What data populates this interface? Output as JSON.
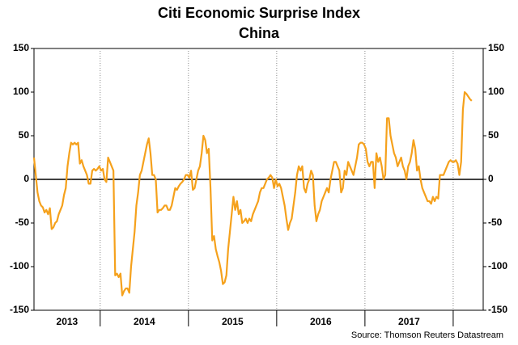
{
  "chart_data": {
    "type": "line",
    "title": "Citi Economic Surprise Index",
    "subtitle": "China",
    "source": "Source: Thomson Reuters Datastream",
    "xlim": [
      2013.25,
      2018.34
    ],
    "xticks": [
      2014,
      2015,
      2016,
      2017,
      2018
    ],
    "year_labels": [
      {
        "value": 2013.625,
        "label": "2013"
      },
      {
        "value": 2014.5,
        "label": "2014"
      },
      {
        "value": 2015.5,
        "label": "2015"
      },
      {
        "value": 2016.5,
        "label": "2016"
      },
      {
        "value": 2017.5,
        "label": "2017"
      }
    ],
    "ylim": [
      -150,
      150
    ],
    "yticks": [
      150,
      100,
      50,
      0,
      -50,
      -100,
      -150
    ],
    "y2lim": [
      -150,
      150
    ],
    "y2ticks": [
      150,
      100,
      50,
      0,
      -50,
      -100,
      -150
    ],
    "zero_line": 0,
    "grid": true,
    "series": [
      {
        "name": "China",
        "color": "#f5a11c",
        "x": [
          2013.25,
          2013.27,
          2013.29,
          2013.31,
          2013.33,
          2013.35,
          2013.37,
          2013.39,
          2013.41,
          2013.43,
          2013.45,
          2013.47,
          2013.49,
          2013.51,
          2013.53,
          2013.55,
          2013.57,
          2013.59,
          2013.61,
          2013.63,
          2013.65,
          2013.67,
          2013.69,
          2013.71,
          2013.73,
          2013.75,
          2013.77,
          2013.79,
          2013.81,
          2013.83,
          2013.85,
          2013.87,
          2013.89,
          2013.91,
          2013.93,
          2013.95,
          2013.97,
          2013.99,
          2014.01,
          2014.03,
          2014.05,
          2014.07,
          2014.09,
          2014.11,
          2014.13,
          2014.15,
          2014.17,
          2014.19,
          2014.21,
          2014.23,
          2014.25,
          2014.27,
          2014.29,
          2014.31,
          2014.33,
          2014.35,
          2014.37,
          2014.39,
          2014.41,
          2014.43,
          2014.45,
          2014.47,
          2014.49,
          2014.51,
          2014.53,
          2014.55,
          2014.57,
          2014.59,
          2014.61,
          2014.63,
          2014.65,
          2014.67,
          2014.69,
          2014.71,
          2014.73,
          2014.75,
          2014.77,
          2014.79,
          2014.81,
          2014.83,
          2014.85,
          2014.87,
          2014.89,
          2014.91,
          2014.93,
          2014.95,
          2014.97,
          2014.99,
          2015.01,
          2015.03,
          2015.05,
          2015.07,
          2015.09,
          2015.11,
          2015.13,
          2015.15,
          2015.17,
          2015.19,
          2015.21,
          2015.23,
          2015.25,
          2015.27,
          2015.29,
          2015.31,
          2015.33,
          2015.35,
          2015.37,
          2015.39,
          2015.41,
          2015.43,
          2015.45,
          2015.47,
          2015.49,
          2015.51,
          2015.53,
          2015.55,
          2015.57,
          2015.59,
          2015.61,
          2015.63,
          2015.65,
          2015.67,
          2015.69,
          2015.71,
          2015.73,
          2015.75,
          2015.77,
          2015.79,
          2015.81,
          2015.83,
          2015.85,
          2015.87,
          2015.89,
          2015.91,
          2015.93,
          2015.95,
          2015.97,
          2015.99,
          2016.01,
          2016.03,
          2016.05,
          2016.07,
          2016.09,
          2016.11,
          2016.13,
          2016.15,
          2016.17,
          2016.19,
          2016.21,
          2016.23,
          2016.25,
          2016.27,
          2016.29,
          2016.31,
          2016.33,
          2016.35,
          2016.37,
          2016.39,
          2016.41,
          2016.43,
          2016.45,
          2016.47,
          2016.49,
          2016.51,
          2016.53,
          2016.55,
          2016.57,
          2016.59,
          2016.61,
          2016.63,
          2016.65,
          2016.67,
          2016.69,
          2016.71,
          2016.73,
          2016.75,
          2016.77,
          2016.79,
          2016.81,
          2016.83,
          2016.85,
          2016.87,
          2016.89,
          2016.91,
          2016.93,
          2016.95,
          2016.97,
          2016.99,
          2017.01,
          2017.03,
          2017.05,
          2017.07,
          2017.09,
          2017.11,
          2017.13,
          2017.15,
          2017.17,
          2017.19,
          2017.21,
          2017.23,
          2017.25,
          2017.27,
          2017.29,
          2017.31,
          2017.33,
          2017.35,
          2017.37,
          2017.39,
          2017.41,
          2017.43,
          2017.45,
          2017.47,
          2017.49,
          2017.51,
          2017.53,
          2017.55,
          2017.57,
          2017.59,
          2017.61,
          2017.63,
          2017.65,
          2017.67,
          2017.69,
          2017.71,
          2017.73,
          2017.75,
          2017.77,
          2017.79,
          2017.81,
          2017.83,
          2017.85,
          2017.87,
          2017.89,
          2017.91,
          2017.93,
          2017.95,
          2017.97,
          2017.99,
          2018.01,
          2018.03,
          2018.05,
          2018.07,
          2018.09,
          2018.11,
          2018.13,
          2018.15,
          2018.17,
          2018.19,
          2018.21
        ],
        "values": [
          25,
          5,
          -15,
          -25,
          -30,
          -32,
          -38,
          -35,
          -40,
          -33,
          -57,
          -55,
          -50,
          -48,
          -40,
          -35,
          -30,
          -18,
          -10,
          15,
          30,
          42,
          40,
          42,
          40,
          42,
          18,
          22,
          15,
          10,
          5,
          -5,
          -5,
          10,
          12,
          10,
          12,
          15,
          10,
          12,
          0,
          -3,
          25,
          20,
          15,
          10,
          -110,
          -108,
          -112,
          -108,
          -133,
          -128,
          -125,
          -125,
          -130,
          -100,
          -80,
          -60,
          -30,
          -15,
          5,
          10,
          20,
          30,
          40,
          47,
          30,
          5,
          5,
          0,
          -38,
          -35,
          -35,
          -33,
          -30,
          -30,
          -35,
          -35,
          -30,
          -20,
          -10,
          -12,
          -8,
          -5,
          -3,
          0,
          5,
          5,
          2,
          10,
          -12,
          -10,
          0,
          10,
          15,
          30,
          50,
          45,
          30,
          35,
          -10,
          -70,
          -65,
          -80,
          -88,
          -95,
          -105,
          -120,
          -118,
          -110,
          -80,
          -60,
          -40,
          -20,
          -35,
          -25,
          -40,
          -35,
          -50,
          -48,
          -45,
          -50,
          -45,
          -48,
          -40,
          -35,
          -30,
          -25,
          -15,
          -10,
          -10,
          -5,
          0,
          2,
          5,
          2,
          -10,
          0,
          -8,
          -5,
          -10,
          -20,
          -30,
          -45,
          -58,
          -50,
          -45,
          -30,
          -15,
          5,
          15,
          10,
          15,
          -10,
          -15,
          -5,
          0,
          10,
          5,
          -30,
          -48,
          -40,
          -35,
          -25,
          -20,
          -15,
          -10,
          -15,
          0,
          10,
          20,
          20,
          15,
          10,
          -15,
          -10,
          10,
          5,
          20,
          15,
          10,
          5,
          15,
          25,
          40,
          42,
          42,
          40,
          35,
          20,
          15,
          20,
          20,
          -10,
          30,
          20,
          25,
          15,
          0,
          5,
          70,
          70,
          50,
          40,
          30,
          25,
          15,
          20,
          25,
          15,
          10,
          0,
          15,
          20,
          30,
          45,
          35,
          10,
          15,
          0,
          -10,
          -15,
          -20,
          -25,
          -25,
          -28,
          -20,
          -25,
          -20,
          -22,
          5,
          5,
          5,
          10,
          15,
          20,
          22,
          20,
          20,
          22,
          18,
          5,
          20,
          80,
          100,
          98,
          95,
          92,
          90
        ]
      }
    ]
  }
}
